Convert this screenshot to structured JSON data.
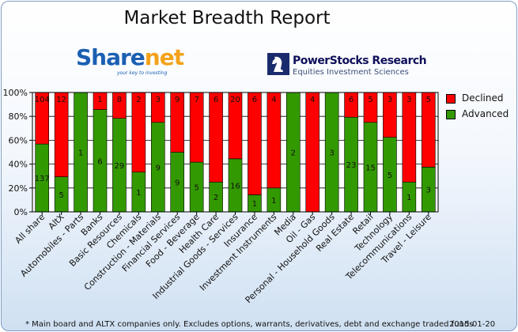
{
  "logos": {
    "sharenet": {
      "part1": "Share",
      "part2": "net",
      "tagline": "your key to investing"
    },
    "powerstocks": {
      "name": "PowerStocks  Research",
      "subtitle": "Equities Investment Sciences"
    }
  },
  "footnote": "* Main board and ALTX companies only. Excludes options, warrants, derivatives, debt and exchange traded funds",
  "date": "2015-01-20",
  "colors": {
    "declined": "#ff0000",
    "advanced": "#339900",
    "background_top": "#ffffff",
    "background_bottom": "#cfe0f2",
    "border": "#7f9fc4"
  },
  "chart_data": {
    "type": "bar",
    "stacked": "percent",
    "title": "Market Breadth Report",
    "ylim": [
      0,
      100
    ],
    "yticks": [
      "0%",
      "20%",
      "40%",
      "60%",
      "80%",
      "100%"
    ],
    "legend_position": "right",
    "categories": [
      "All share",
      "AltX",
      "Automobiles - Parts",
      "Banks",
      "Basic Resources",
      "Chemicals",
      "Construction - Materials",
      "Financial Services",
      "Food - Beverage",
      "Health Care",
      "Industrial Goods - Services",
      "Insurance",
      "Investment Instruments",
      "Media",
      "Oil - Gas",
      "Personal - Household Goods",
      "Real Estate",
      "Retail",
      "Technology",
      "Telecommunications",
      "Travel - Leisure"
    ],
    "series": [
      {
        "name": "Declined",
        "color": "#ff0000",
        "values": [
          104,
          12,
          0,
          1,
          8,
          2,
          3,
          9,
          7,
          6,
          20,
          6,
          4,
          0,
          4,
          0,
          6,
          5,
          3,
          3,
          5
        ]
      },
      {
        "name": "Advanced",
        "color": "#339900",
        "values": [
          137,
          5,
          1,
          6,
          29,
          1,
          9,
          9,
          5,
          2,
          16,
          1,
          1,
          2,
          0,
          3,
          23,
          15,
          5,
          1,
          3
        ]
      }
    ]
  }
}
